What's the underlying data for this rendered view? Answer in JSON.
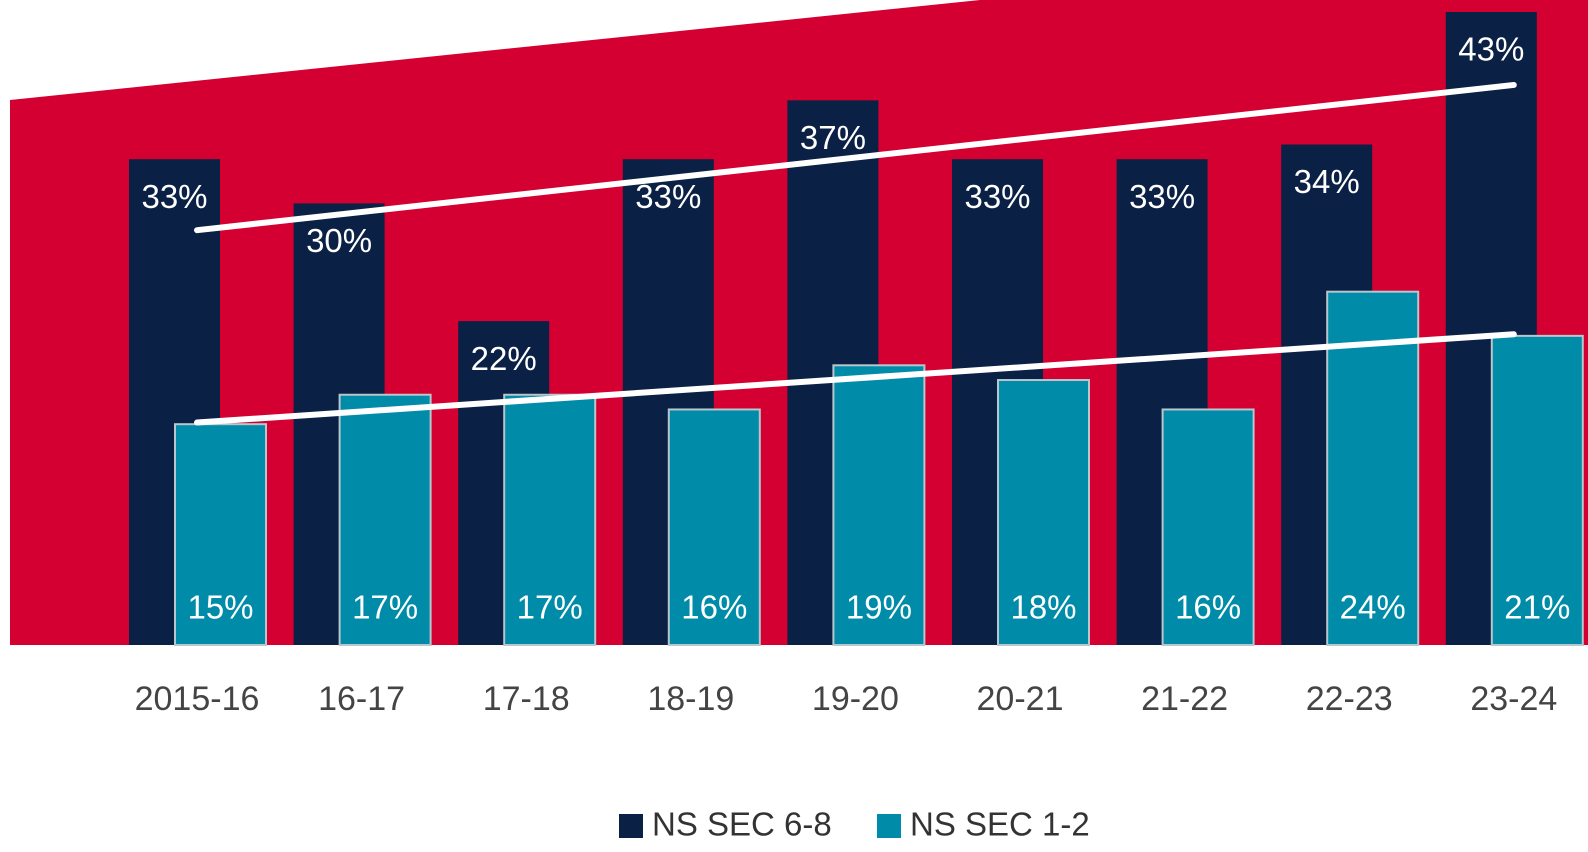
{
  "chart_data": {
    "type": "bar",
    "categories": [
      "2015-16",
      "16-17",
      "17-18",
      "18-19",
      "19-20",
      "20-21",
      "21-22",
      "22-23",
      "23-24"
    ],
    "series": [
      {
        "name": "NS SEC 6-8",
        "color": "#0b2045",
        "values": [
          33,
          30,
          22,
          33,
          37,
          33,
          33,
          34,
          43
        ]
      },
      {
        "name": "NS SEC 1-2",
        "color": "#008ca9",
        "values": [
          15,
          17,
          17,
          16,
          19,
          18,
          16,
          24,
          21
        ]
      }
    ],
    "value_labels": [
      [
        "33%",
        "30%",
        "22%",
        "33%",
        "37%",
        "33%",
        "33%",
        "34%",
        "43%"
      ],
      [
        "15%",
        "17%",
        "17%",
        "16%",
        "19%",
        "18%",
        "16%",
        "24%",
        "21%"
      ]
    ],
    "ylim": [
      0,
      43
    ],
    "trendline": true,
    "background_color": "#d50032",
    "legend": "bottom"
  }
}
